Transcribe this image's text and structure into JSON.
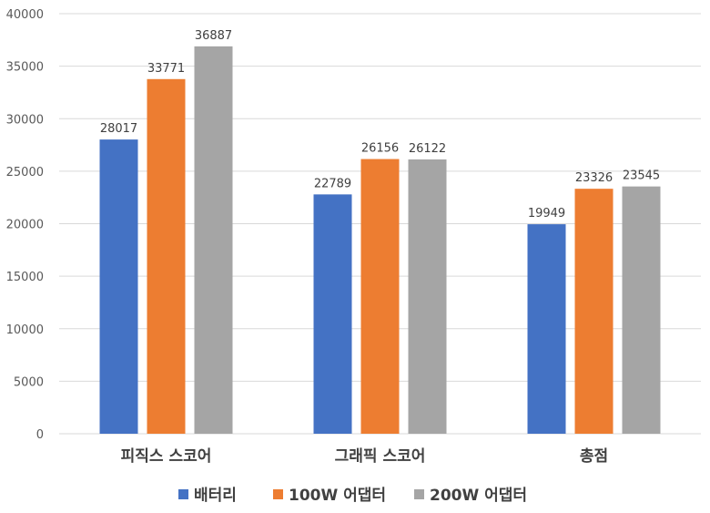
{
  "chart_data": {
    "type": "bar",
    "categories": [
      "피직스 스코어",
      "그래픽 스코어",
      "총점"
    ],
    "series": [
      {
        "name": "배터리",
        "values": [
          28017,
          22789,
          19949
        ],
        "color": "#4472C4"
      },
      {
        "name": "100W 어댑터",
        "values": [
          33771,
          26156,
          23326
        ],
        "color": "#ED7D31"
      },
      {
        "name": "200W 어댑터",
        "values": [
          36887,
          26122,
          23545
        ],
        "color": "#A5A5A5"
      }
    ],
    "ylim": [
      0,
      40000
    ],
    "yticks": [
      0,
      5000,
      10000,
      15000,
      20000,
      25000,
      30000,
      35000,
      40000
    ],
    "grid": true,
    "legend": "bottom",
    "data_labels": true,
    "title": "",
    "xlabel": "",
    "ylabel": ""
  }
}
